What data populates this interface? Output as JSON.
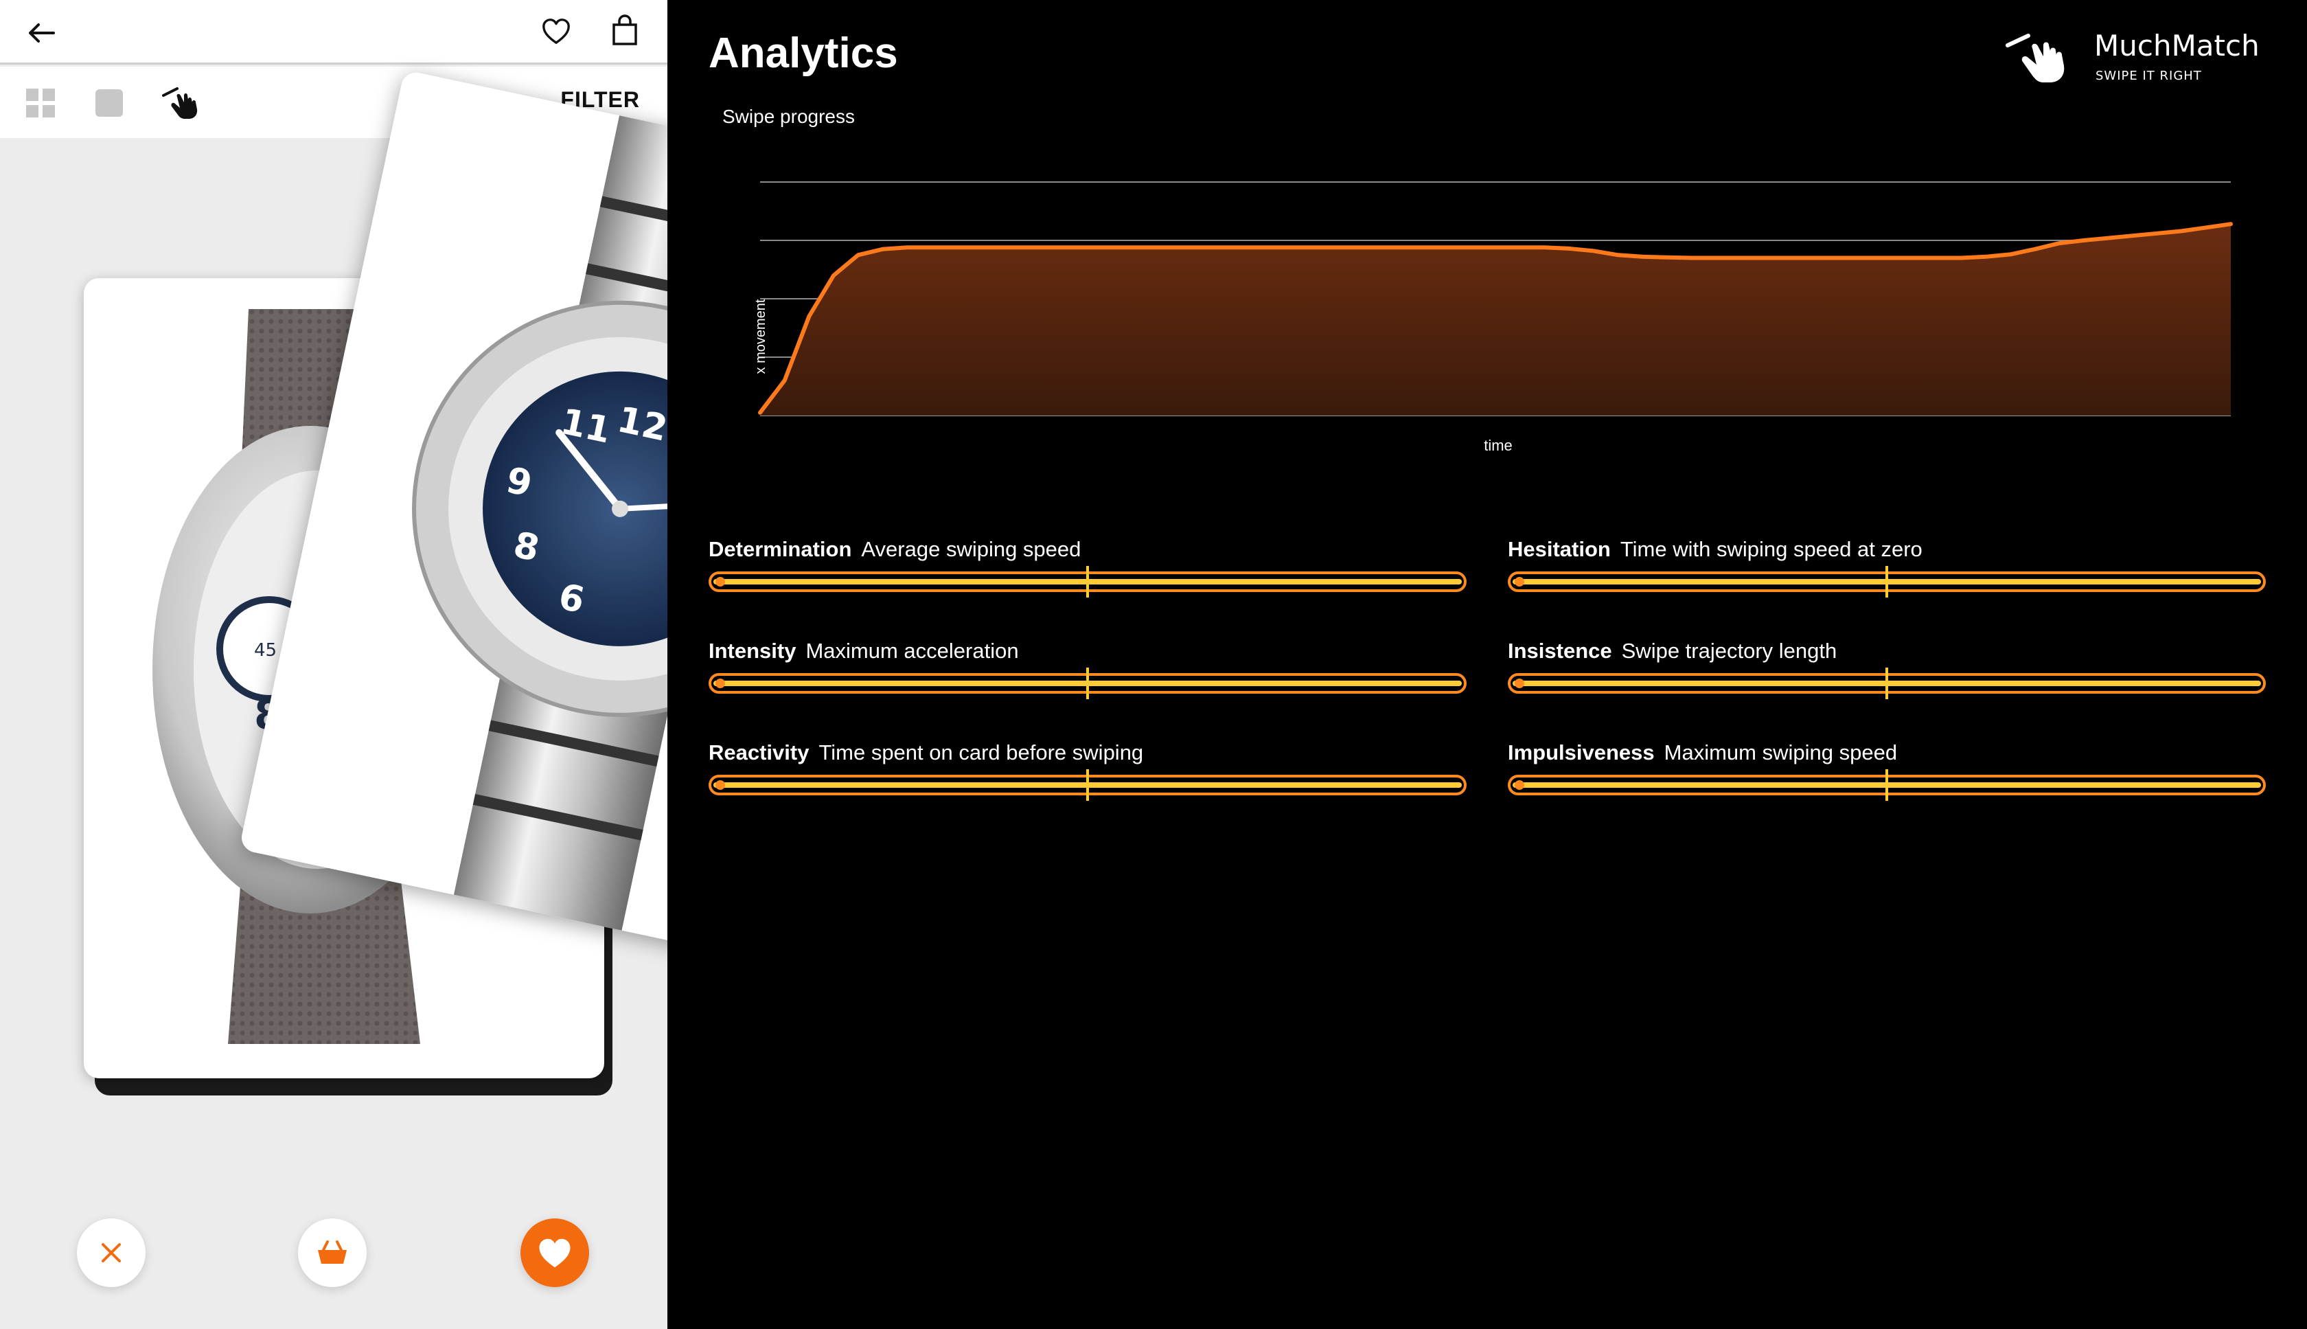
{
  "phone": {
    "filter_label": "FILTER",
    "icons": {
      "back": "arrow-left-icon",
      "wishlist": "heart-outline-icon",
      "bag": "shopping-bag-icon",
      "grid_view": "grid-icon",
      "single_view": "square-icon",
      "swipe_view": "swipe-hand-icon"
    },
    "actions": {
      "dislike": "close-icon",
      "basket": "basket-icon",
      "like": "heart-filled-icon"
    },
    "colors": {
      "accent": "#f26b0f",
      "panel": "#ececed"
    }
  },
  "analytics": {
    "title": "Analytics",
    "logo": {
      "name": "MuchMatch",
      "tagline": "SWIPE IT RIGHT"
    },
    "chart_data": {
      "type": "area",
      "title": "Swipe progress",
      "xlabel": "time",
      "ylabel": "x movement",
      "ylim": [
        0,
        4
      ],
      "grid": true,
      "x": [
        0,
        1,
        2,
        3,
        4,
        5,
        6,
        7,
        8,
        9,
        10,
        11,
        12,
        13,
        14,
        15,
        16,
        17,
        18,
        19,
        20,
        21,
        22,
        23,
        24,
        25,
        26,
        27,
        28,
        29,
        30,
        31,
        32,
        33,
        34,
        35,
        36,
        37,
        38,
        39,
        40,
        41,
        42,
        43,
        44,
        45,
        46,
        47,
        48,
        49,
        50,
        51,
        52,
        53,
        54,
        55,
        56,
        57,
        58,
        59,
        60
      ],
      "series": [
        {
          "values": [
            0.05,
            0.6,
            1.7,
            2.4,
            2.75,
            2.85,
            2.88,
            2.88,
            2.88,
            2.88,
            2.88,
            2.88,
            2.88,
            2.88,
            2.88,
            2.88,
            2.88,
            2.88,
            2.88,
            2.88,
            2.88,
            2.88,
            2.88,
            2.88,
            2.88,
            2.88,
            2.88,
            2.88,
            2.88,
            2.88,
            2.88,
            2.88,
            2.88,
            2.86,
            2.82,
            2.75,
            2.72,
            2.71,
            2.7,
            2.7,
            2.7,
            2.7,
            2.7,
            2.7,
            2.7,
            2.7,
            2.7,
            2.7,
            2.7,
            2.7,
            2.72,
            2.76,
            2.85,
            2.95,
            3.0,
            3.04,
            3.08,
            3.12,
            3.16,
            3.22,
            3.28
          ]
        }
      ],
      "colors": {
        "line": "#ff7a1a",
        "fill_top": "#6b2d10",
        "fill_bottom": "#3a1a0b",
        "grid": "#8a8a8a"
      }
    },
    "metrics": [
      {
        "name": "Determination",
        "desc": "Average swiping speed",
        "value": 0.5
      },
      {
        "name": "Hesitation",
        "desc": "Time with swiping speed at zero",
        "value": 0.5
      },
      {
        "name": "Intensity",
        "desc": "Maximum acceleration",
        "value": 0.5
      },
      {
        "name": "Insistence",
        "desc": "Swipe trajectory length",
        "value": 0.5
      },
      {
        "name": "Reactivity",
        "desc": "Time spent on card before swiping",
        "value": 0.5
      },
      {
        "name": "Impulsiveness",
        "desc": "Maximum swiping speed",
        "value": 0.5
      }
    ]
  }
}
